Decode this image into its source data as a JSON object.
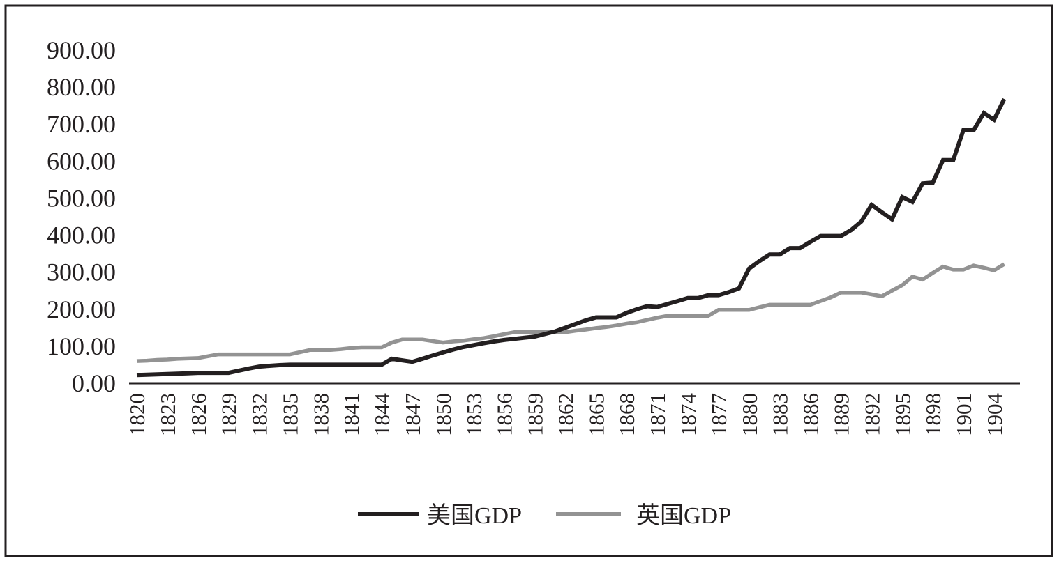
{
  "chart_data": {
    "type": "line",
    "title": "",
    "xlabel": "",
    "ylabel": "",
    "ylim": [
      0,
      900
    ],
    "y_ticks": [
      "0.00",
      "100.00",
      "200.00",
      "300.00",
      "400.00",
      "500.00",
      "600.00",
      "700.00",
      "800.00",
      "900.00"
    ],
    "x_start": 1820,
    "x_end": 1905,
    "x_tick_labels": [
      "1820",
      "1823",
      "1826",
      "1829",
      "1832",
      "1835",
      "1838",
      "1841",
      "1844",
      "1847",
      "1850",
      "1853",
      "1856",
      "1859",
      "1862",
      "1865",
      "1868",
      "1871",
      "1874",
      "1877",
      "1880",
      "1883",
      "1886",
      "1889",
      "1892",
      "1895",
      "1898",
      "1901",
      "1904"
    ],
    "grid": false,
    "legend_position": "bottom",
    "series": [
      {
        "name": "美国GDP",
        "color": "#231f20",
        "values": [
          22,
          23,
          24,
          25,
          26,
          27,
          28,
          28,
          28,
          28,
          34,
          40,
          45,
          47,
          49,
          50,
          50,
          50,
          50,
          50,
          50,
          50,
          50,
          50,
          50,
          66,
          62,
          58,
          66,
          75,
          83,
          91,
          98,
          103,
          108,
          113,
          117,
          120,
          123,
          126,
          133,
          140,
          150,
          160,
          170,
          178,
          178,
          178,
          190,
          200,
          208,
          206,
          214,
          222,
          230,
          230,
          238,
          238,
          246,
          256,
          310,
          330,
          348,
          348,
          365,
          365,
          382,
          398,
          398,
          398,
          414,
          437,
          482,
          462,
          443,
          503,
          490,
          540,
          542,
          603,
          603,
          684,
          684,
          730,
          712,
          768
        ]
      },
      {
        "name": "英国GDP",
        "color": "#939393",
        "values": [
          60,
          61,
          63,
          64,
          66,
          67,
          68,
          73,
          78,
          78,
          78,
          78,
          78,
          78,
          78,
          78,
          84,
          90,
          90,
          90,
          92,
          95,
          97,
          97,
          97,
          110,
          118,
          118,
          118,
          114,
          110,
          113,
          115,
          119,
          122,
          127,
          133,
          138,
          138,
          138,
          138,
          138,
          138,
          142,
          145,
          149,
          152,
          156,
          161,
          165,
          171,
          177,
          182,
          182,
          182,
          182,
          182,
          198,
          198,
          198,
          198,
          205,
          212,
          212,
          212,
          212,
          212,
          222,
          232,
          245,
          245,
          245,
          240,
          235,
          250,
          265,
          288,
          280,
          298,
          315,
          307,
          307,
          318,
          312,
          305,
          322
        ]
      }
    ]
  }
}
